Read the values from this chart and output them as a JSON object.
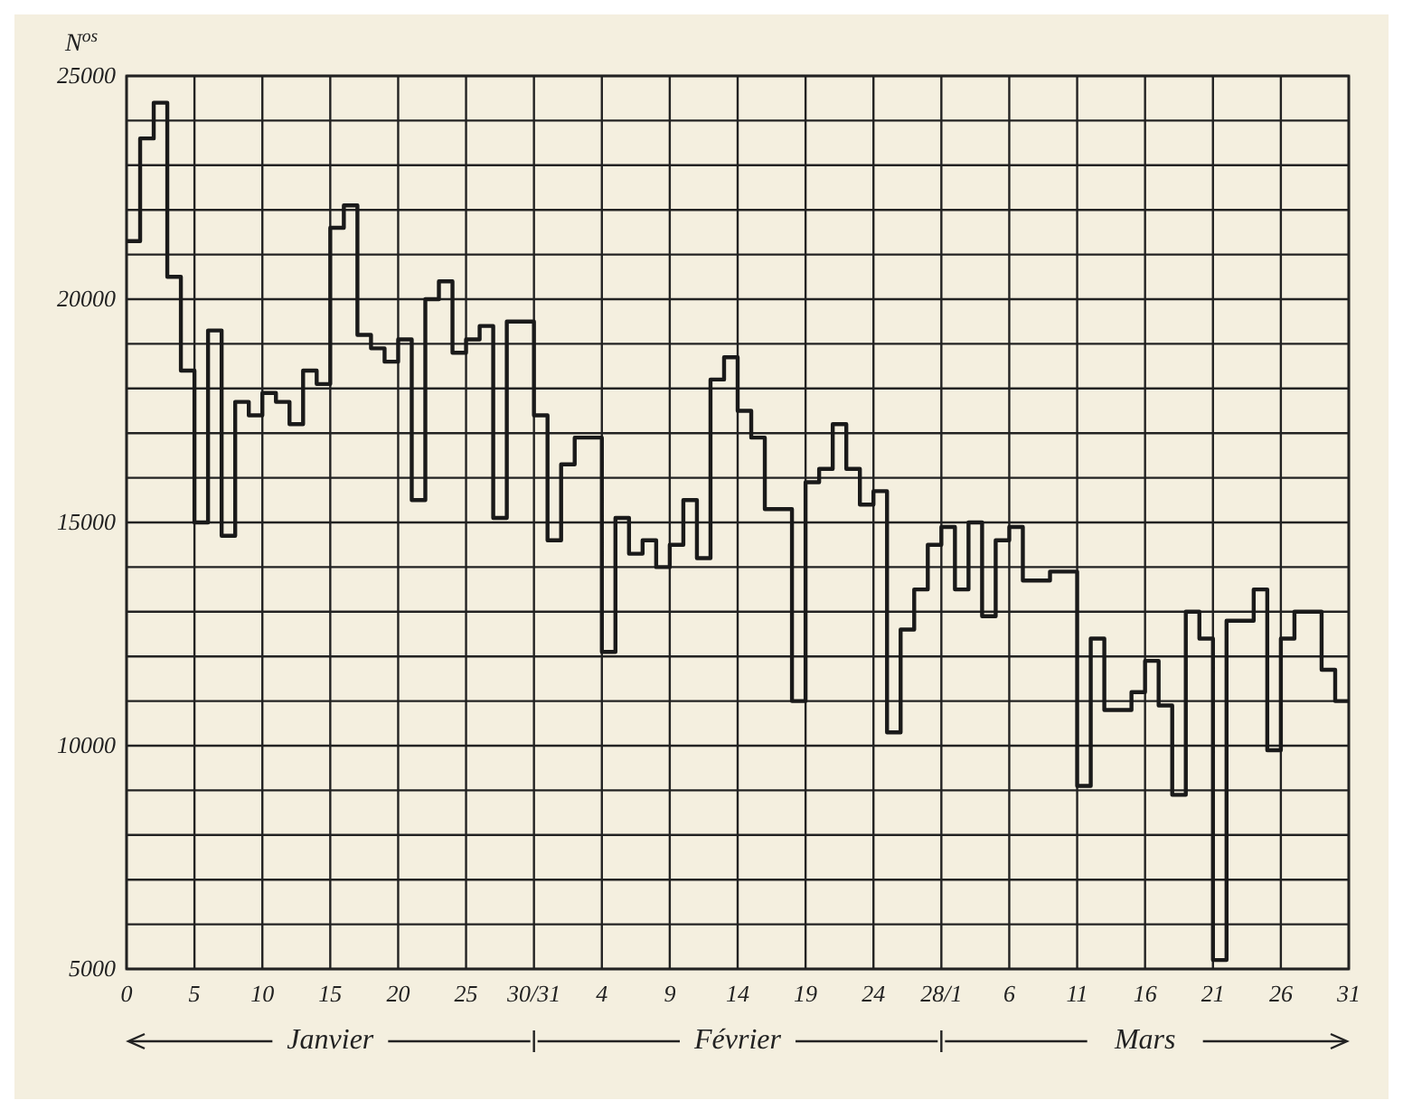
{
  "chart_data": {
    "type": "step",
    "ylabel": "N$^{os}$",
    "color": "#1a1a1a",
    "categories": [
      "0",
      null,
      null,
      null,
      null,
      "5",
      null,
      null,
      null,
      null,
      "10",
      null,
      null,
      null,
      null,
      "15",
      null,
      null,
      null,
      null,
      "20",
      null,
      null,
      null,
      null,
      "25",
      null,
      null,
      null,
      null,
      "30/31",
      null,
      null,
      null,
      null,
      "4",
      null,
      null,
      null,
      null,
      "9",
      null,
      null,
      null,
      null,
      "14",
      null,
      null,
      null,
      null,
      "19",
      null,
      null,
      null,
      null,
      "24",
      null,
      null,
      null,
      null,
      "28/1",
      null,
      null,
      null,
      null,
      "6",
      null,
      null,
      null,
      null,
      "11",
      null,
      null,
      null,
      null,
      "16",
      null,
      null,
      null,
      null,
      "21",
      null,
      null,
      null,
      null,
      "26",
      null,
      null,
      null,
      null,
      "31"
    ],
    "values": [
      21300,
      23600,
      24400,
      20500,
      18400,
      15000,
      19300,
      14700,
      17700,
      17400,
      17900,
      17700,
      17200,
      18400,
      18100,
      21600,
      22100,
      19200,
      18900,
      18600,
      19100,
      15500,
      20000,
      20400,
      18800,
      19100,
      19400,
      15100,
      19500,
      19500,
      17400,
      14600,
      16300,
      16900,
      16900,
      12100,
      15100,
      14300,
      14600,
      14000,
      14500,
      15500,
      14200,
      18200,
      18700,
      17500,
      16900,
      15300,
      15300,
      11000,
      15900,
      16200,
      17200,
      16200,
      15400,
      15700,
      10300,
      12600,
      13500,
      14500,
      14900,
      13500,
      15000,
      12900,
      14600,
      14900,
      13700,
      13700,
      13900,
      13900,
      9100,
      12400,
      10800,
      10800,
      11200,
      11900,
      10900,
      8900,
      13000,
      12400,
      5200,
      12800,
      12800,
      13500,
      9900,
      12400,
      13000,
      13000,
      11700,
      11000,
      11000
    ],
    "ylim": [
      5000,
      25000
    ],
    "yticks": [
      5000,
      {
        "value": 6000,
        "label": null
      },
      {
        "value": 7000,
        "label": null
      },
      {
        "value": 8000,
        "label": null
      },
      {
        "value": 9000,
        "label": null
      },
      10000,
      {
        "value": 11000,
        "label": null
      },
      {
        "value": 12000,
        "label": null
      },
      {
        "value": 13000,
        "label": null
      },
      {
        "value": 14000,
        "label": null
      },
      15000,
      {
        "value": 16000,
        "label": null
      },
      {
        "value": 17000,
        "label": null
      },
      {
        "value": 18000,
        "label": null
      },
      {
        "value": 19000,
        "label": null
      },
      20000,
      {
        "value": 21000,
        "label": null
      },
      {
        "value": 22000,
        "label": null
      },
      {
        "value": 23000,
        "label": null
      },
      {
        "value": 24000,
        "label": null
      },
      25000
    ],
    "grid": true,
    "line_style": "solid",
    "marker": "none",
    "annotations": [
      "Janvier",
      "Février",
      "Mars"
    ]
  }
}
